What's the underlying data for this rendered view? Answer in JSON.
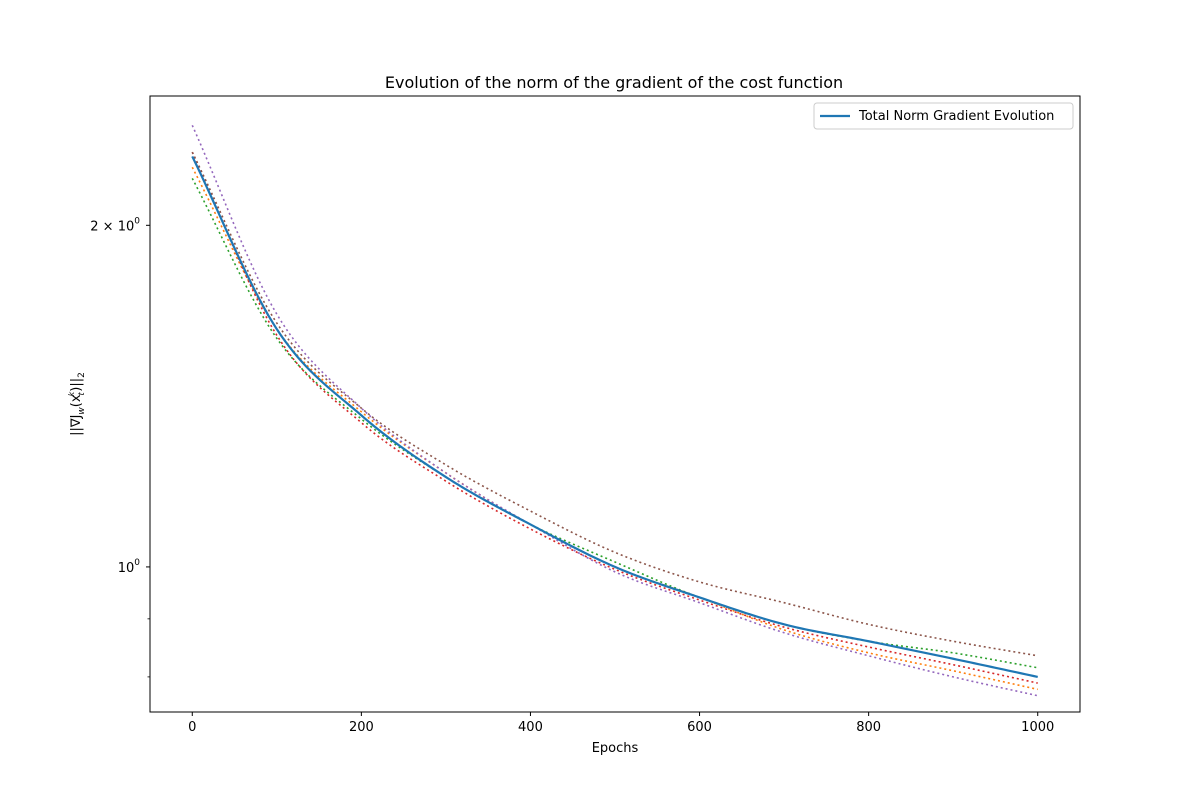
{
  "chart_data": {
    "type": "line",
    "title": "Evolution of the norm of the gradient of the cost function",
    "xlabel": "Epochs",
    "ylabel": "||∇J_w(x_t^k)||_2",
    "ylabel_parts": {
      "prefix": "||∇J",
      "w": "w",
      "x": "(x",
      "k": "k",
      "t": "t",
      "close": ")||",
      "two": "2"
    },
    "xlim": [
      -50,
      1050
    ],
    "ylim": [
      0.745,
      2.6
    ],
    "yscale": "log",
    "x_ticks": [
      0,
      200,
      400,
      600,
      800,
      1000
    ],
    "x_tick_labels": [
      "0",
      "200",
      "400",
      "600",
      "800",
      "1000"
    ],
    "y_major_ticks": [
      {
        "value": 1.0,
        "base": "10",
        "exp": "0"
      },
      {
        "value": 2.0,
        "base": "2 × 10",
        "exp": "0"
      }
    ],
    "y_minor_ticks": [
      0.8,
      0.9
    ],
    "grid": false,
    "legend": {
      "position": "top-right",
      "entries": [
        "Total Norm Gradient Evolution"
      ]
    },
    "x": [
      0,
      100,
      200,
      300,
      400,
      500,
      600,
      700,
      800,
      900,
      1000
    ],
    "series": [
      {
        "name": "Total Norm Gradient Evolution",
        "style": "solid",
        "color": "#1f77b4",
        "values": [
          2.3,
          1.62,
          1.36,
          1.2,
          1.09,
          1.0,
          0.94,
          0.89,
          0.86,
          0.83,
          0.8
        ]
      },
      {
        "style": "dotted",
        "color": "#ff7f0e",
        "values": [
          2.25,
          1.62,
          1.37,
          1.21,
          1.09,
          1.0,
          0.94,
          0.88,
          0.84,
          0.81,
          0.78
        ]
      },
      {
        "style": "dotted",
        "color": "#2ca02c",
        "values": [
          2.2,
          1.59,
          1.35,
          1.2,
          1.09,
          1.01,
          0.94,
          0.89,
          0.86,
          0.84,
          0.815
        ]
      },
      {
        "style": "dotted",
        "color": "#d62728",
        "values": [
          2.32,
          1.6,
          1.34,
          1.19,
          1.08,
          0.995,
          0.935,
          0.885,
          0.85,
          0.82,
          0.79
        ]
      },
      {
        "style": "dotted",
        "color": "#9467bd",
        "values": [
          2.45,
          1.67,
          1.38,
          1.21,
          1.09,
          0.99,
          0.93,
          0.875,
          0.835,
          0.8,
          0.77
        ]
      },
      {
        "style": "dotted",
        "color": "#8c564b",
        "values": [
          2.32,
          1.64,
          1.38,
          1.23,
          1.12,
          1.03,
          0.97,
          0.93,
          0.89,
          0.86,
          0.835
        ]
      }
    ]
  }
}
